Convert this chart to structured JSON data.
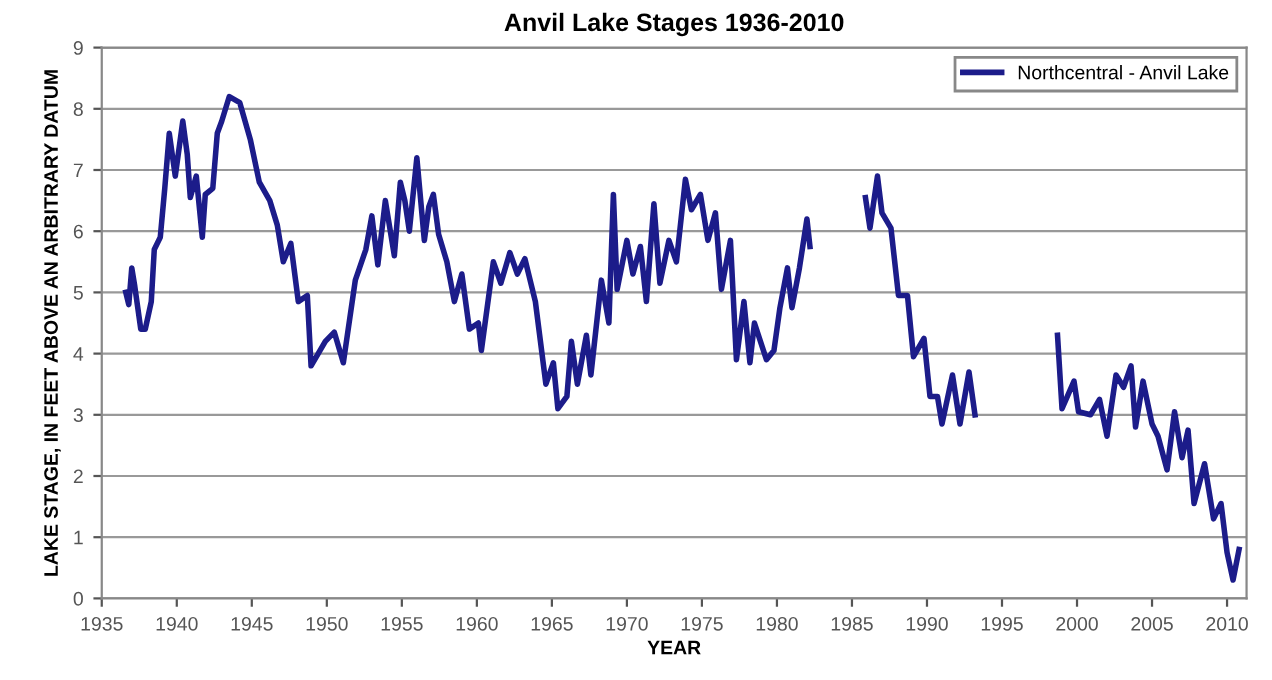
{
  "chart_data": {
    "type": "line",
    "title": "Anvil Lake Stages 1936-2010",
    "xlabel": "YEAR",
    "ylabel": "LAKE STAGE, IN FEET ABOVE AN ARBITRARY DATUM",
    "x": [
      1936.6,
      1936.8,
      1937.0,
      1937.2,
      1937.6,
      1937.9,
      1938.3,
      1938.5,
      1938.9,
      1939.2,
      1939.5,
      1939.9,
      1940.4,
      1940.7,
      1940.9,
      1941.3,
      1941.7,
      1941.9,
      1942.4,
      1942.7,
      1943.0,
      1943.5,
      1944.2,
      1944.9,
      1945.5,
      1946.2,
      1946.7,
      1947.1,
      1947.6,
      1948.1,
      1948.7,
      1948.95,
      1949.9,
      1950.5,
      1951.1,
      1951.9,
      1952.6,
      1953.0,
      1953.4,
      1953.9,
      1954.5,
      1954.9,
      1955.2,
      1955.5,
      1956.0,
      1956.5,
      1956.8,
      1957.1,
      1957.45,
      1958.0,
      1958.5,
      1959.0,
      1959.5,
      1960.1,
      1960.3,
      1961.1,
      1961.6,
      1962.2,
      1962.7,
      1963.2,
      1963.9,
      1964.6,
      1965.1,
      1965.4,
      1966.0,
      1966.3,
      1966.7,
      1967.3,
      1967.6,
      1968.3,
      1968.8,
      1969.1,
      1969.35,
      1970.0,
      1970.4,
      1970.9,
      1971.3,
      1971.8,
      1972.2,
      1972.8,
      1973.3,
      1973.9,
      1974.3,
      1974.9,
      1975.4,
      1975.9,
      1976.3,
      1976.9,
      1977.3,
      1977.8,
      1978.2,
      1978.5,
      1978.9,
      1979.3,
      1979.8,
      1980.2,
      1980.7,
      1981.0,
      1981.5,
      1982.0,
      1982.2,
      1984.0,
      1985.9,
      1986.2,
      1986.7,
      1987.0,
      1987.6,
      1988.1,
      1988.7,
      1989.1,
      1989.8,
      1990.2,
      1990.7,
      1991.0,
      1991.7,
      1992.2,
      1992.8,
      1993.2,
      1996.0,
      1998.7,
      1999.0,
      1999.8,
      2000.1,
      2000.9,
      2001.5,
      2002.0,
      2002.6,
      2003.1,
      2003.6,
      2003.9,
      2004.4,
      2005.0,
      2005.4,
      2006.0,
      2006.5,
      2007.0,
      2007.4,
      2007.8,
      2008.5,
      2009.1,
      2009.6,
      2010.0,
      2010.4,
      2010.8
    ],
    "series": [
      {
        "name": "Northcentral - Anvil Lake",
        "color": "#1c1c8a",
        "values": [
          5.0,
          4.8,
          5.4,
          5.1,
          4.4,
          4.4,
          4.85,
          5.7,
          5.9,
          6.7,
          7.6,
          6.9,
          7.8,
          7.25,
          6.55,
          6.9,
          5.9,
          6.6,
          6.7,
          7.6,
          7.8,
          8.2,
          8.1,
          7.5,
          6.8,
          6.5,
          6.1,
          5.5,
          5.8,
          4.85,
          4.95,
          3.8,
          4.2,
          4.35,
          3.85,
          5.2,
          5.7,
          6.25,
          5.45,
          6.5,
          5.6,
          6.8,
          6.5,
          6.0,
          7.2,
          5.85,
          6.4,
          6.6,
          5.95,
          5.5,
          4.85,
          5.3,
          4.4,
          4.5,
          4.05,
          5.5,
          5.15,
          5.65,
          5.3,
          5.55,
          4.85,
          3.5,
          3.85,
          3.1,
          3.3,
          4.2,
          3.5,
          4.3,
          3.65,
          5.2,
          4.5,
          6.6,
          5.05,
          5.85,
          5.3,
          5.75,
          4.85,
          6.45,
          5.15,
          5.85,
          5.5,
          6.85,
          6.35,
          6.6,
          5.85,
          6.3,
          5.05,
          5.85,
          3.9,
          4.85,
          3.85,
          4.5,
          4.2,
          3.9,
          4.05,
          4.75,
          5.4,
          4.75,
          5.4,
          6.2,
          5.75,
          null,
          6.55,
          6.05,
          6.9,
          6.3,
          6.05,
          4.95,
          4.95,
          3.95,
          4.25,
          3.3,
          3.3,
          2.85,
          3.65,
          2.85,
          3.7,
          3.0,
          null,
          4.3,
          3.1,
          3.55,
          3.05,
          3.0,
          3.25,
          2.65,
          3.65,
          3.45,
          3.8,
          2.8,
          3.55,
          2.85,
          2.65,
          2.1,
          3.05,
          2.3,
          2.75,
          1.55,
          2.2,
          1.3,
          1.55,
          0.75,
          0.3,
          0.8
        ]
      }
    ],
    "xlim": [
      1935,
      2011.3
    ],
    "xticks": [
      1935,
      1940,
      1945,
      1950,
      1955,
      1960,
      1965,
      1970,
      1975,
      1980,
      1985,
      1990,
      1995,
      2000,
      2005,
      2010
    ],
    "ylim": [
      0,
      9
    ],
    "yticks": [
      0,
      1,
      2,
      3,
      4,
      5,
      6,
      7,
      8,
      9
    ],
    "grid": "y",
    "legend": "top right",
    "line_style": "solid",
    "marker": "none"
  }
}
